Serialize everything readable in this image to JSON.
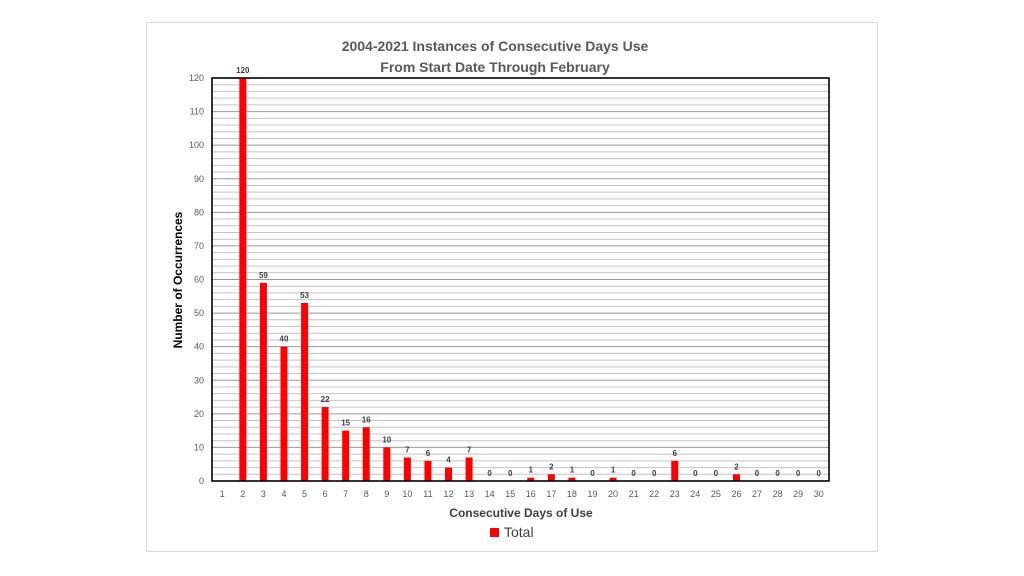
{
  "chart_data": {
    "type": "bar",
    "title": "2004-2021 Instances of Consecutive Days Use",
    "subtitle": "From Start Date Through February",
    "xlabel": "Consecutive Days of Use",
    "ylabel": "Number of Occurrences",
    "categories": [
      "1",
      "2",
      "3",
      "4",
      "5",
      "6",
      "7",
      "8",
      "9",
      "10",
      "11",
      "12",
      "13",
      "14",
      "15",
      "16",
      "17",
      "18",
      "19",
      "20",
      "21",
      "22",
      "23",
      "24",
      "25",
      "26",
      "27",
      "28",
      "29",
      "30"
    ],
    "series": [
      {
        "name": "Total",
        "color": "#ff0000",
        "values": [
          null,
          120,
          59,
          40,
          53,
          22,
          15,
          16,
          10,
          7,
          6,
          4,
          7,
          0,
          0,
          1,
          2,
          1,
          0,
          1,
          0,
          0,
          6,
          0,
          0,
          2,
          0,
          0,
          0,
          0
        ]
      }
    ],
    "data_labels": [
      "",
      "120",
      "59",
      "40",
      "53",
      "22",
      "15",
      "16",
      "10",
      "7",
      "6",
      "4",
      "7",
      "0",
      "0",
      "1",
      "2",
      "1",
      "0",
      "1",
      "0",
      "0",
      "6",
      "0",
      "0",
      "2",
      "0",
      "0",
      "0",
      "0"
    ],
    "ylim": [
      0,
      120
    ],
    "yticks": [
      "0",
      "10",
      "20",
      "30",
      "40",
      "50",
      "60",
      "70",
      "80",
      "90",
      "100",
      "110",
      "120"
    ],
    "grid": true,
    "legend_position": "bottom"
  }
}
